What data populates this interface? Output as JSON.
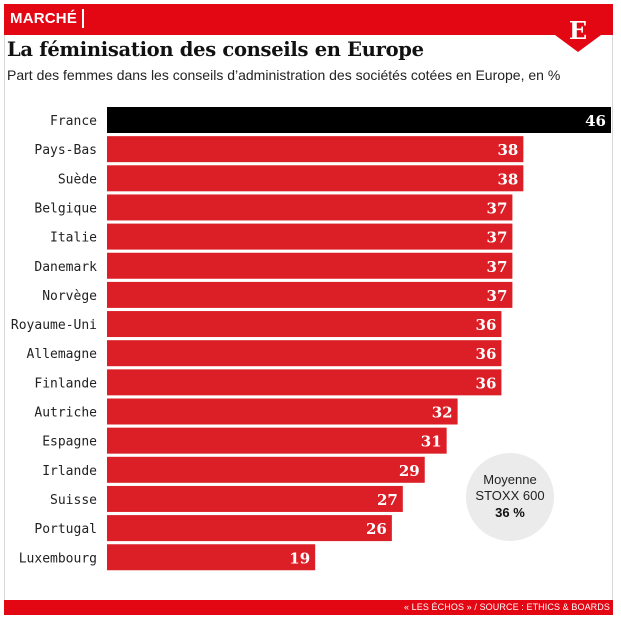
{
  "header": {
    "rubric": "MARCHÉ",
    "logo_letter": "E",
    "title": "La féminisation des conseils en Europe",
    "subtitle": "Part des femmes dans les conseils d’administration des sociétés cotées en Europe, en %"
  },
  "colors": {
    "accent": "#e30613",
    "bar": "#dc1f26",
    "highlight_bar": "#000000",
    "badge": "#ebebeb"
  },
  "chart_data": {
    "type": "bar",
    "orientation": "horizontal",
    "categories": [
      "France",
      "Pays-Bas",
      "Suède",
      "Belgique",
      "Italie",
      "Danemark",
      "Norvège",
      "Royaume-Uni",
      "Allemagne",
      "Finlande",
      "Autriche",
      "Espagne",
      "Irlande",
      "Suisse",
      "Portugal",
      "Luxembourg"
    ],
    "values": [
      46,
      38,
      38,
      37,
      37,
      37,
      37,
      36,
      36,
      36,
      32,
      31,
      29,
      27,
      26,
      19
    ],
    "value_labels": [
      "46",
      "38",
      "38",
      "37",
      "37",
      "37",
      "37",
      "36",
      "36",
      "36",
      "32",
      "31",
      "29",
      "27",
      "26",
      "19"
    ],
    "highlight": "France",
    "xlim": [
      0,
      46
    ],
    "grid": false,
    "annotation": {
      "line1": "Moyenne",
      "line2": "STOXX 600",
      "line3": "36 %"
    }
  },
  "footer": {
    "source": "« LES ÉCHOS » / SOURCE : ETHICS & BOARDS"
  }
}
